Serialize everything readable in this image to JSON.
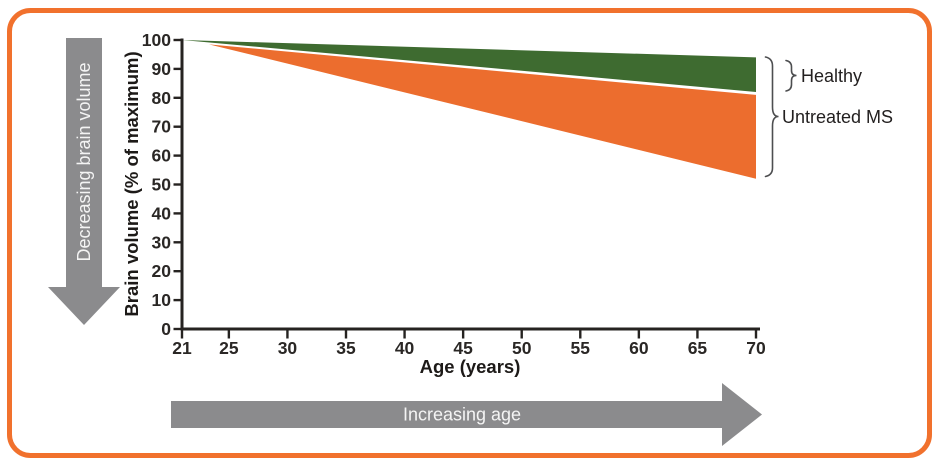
{
  "frame": {
    "border_color": "#F1712D",
    "background": "#FFFFFF"
  },
  "arrows": {
    "left": {
      "label": "Decreasing brain volume",
      "direction": "down",
      "color": "#8B8B8D",
      "text_color": "#F4F4F4"
    },
    "bottom": {
      "label": "Increasing age",
      "direction": "right",
      "color": "#8B8B8D",
      "text_color": "#F4F4F4"
    }
  },
  "chart_data": {
    "type": "area",
    "title": "",
    "xlabel": "Age (years)",
    "ylabel": "Brain volume (% of maximum)",
    "xlim": [
      21,
      70
    ],
    "ylim": [
      0,
      100
    ],
    "x_ticks": [
      21,
      25,
      30,
      35,
      40,
      45,
      50,
      55,
      60,
      65,
      70
    ],
    "y_ticks": [
      0,
      10,
      20,
      30,
      40,
      50,
      60,
      70,
      80,
      90,
      100
    ],
    "grid": false,
    "legend_position": "right-braces",
    "series": [
      {
        "name": "Healthy",
        "band_shape": "wedge",
        "color": "#3E6B30",
        "x": [
          21,
          70
        ],
        "upper": [
          100,
          94
        ],
        "lower": [
          100,
          82
        ]
      },
      {
        "name": "Untreated MS",
        "band_shape": "wedge",
        "color": "#EC6D2E",
        "x": [
          23.3,
          70
        ],
        "upper": [
          98.5,
          81
        ],
        "lower": [
          98.5,
          52
        ]
      }
    ]
  }
}
